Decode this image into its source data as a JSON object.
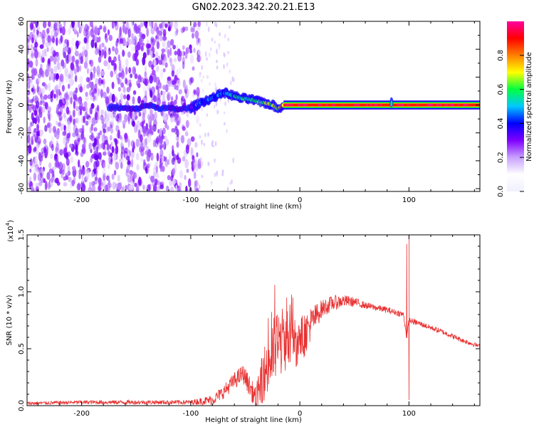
{
  "figure": {
    "title": "GN02.2023.342.20.21.E13"
  },
  "chart_data": [
    {
      "type": "heatmap",
      "xlabel": "Height of straight line (km)",
      "ylabel": "Frequency (Hz)",
      "xlim": [
        -250,
        165
      ],
      "ylim": [
        -62,
        60
      ],
      "xticks": [
        -200,
        -100,
        0,
        100
      ],
      "yticks": [
        60,
        40,
        20,
        0,
        -20,
        -40,
        -60
      ],
      "colorbar": {
        "label": "Normalized spectral amplitude",
        "range": [
          0,
          1
        ],
        "ticks": [
          "0.0",
          "0.2",
          "0.4",
          "0.6",
          "0.8"
        ],
        "colormap": [
          "#f0f0ff",
          "#ffffff",
          "#c8a0ff",
          "#8000ff",
          "#0000ff",
          "#00c8ff",
          "#00ff40",
          "#ffff00",
          "#ff8000",
          "#ff0000",
          "#ff00a0"
        ]
      },
      "features": {
        "noise_region_x": [
          -250,
          -92
        ],
        "sparse_region_x": [
          -92,
          -60
        ],
        "signal_track": [
          {
            "x": -170,
            "f": -2,
            "amp": 0.2
          },
          {
            "x": -150,
            "f": -3,
            "amp": 0.25
          },
          {
            "x": -140,
            "f": 0,
            "amp": 0.3
          },
          {
            "x": -130,
            "f": -2,
            "amp": 0.2
          },
          {
            "x": -110,
            "f": -3,
            "amp": 0.2
          },
          {
            "x": -100,
            "f": -2,
            "amp": 0.3
          },
          {
            "x": -90,
            "f": 2,
            "amp": 0.4
          },
          {
            "x": -80,
            "f": 5,
            "amp": 0.45
          },
          {
            "x": -70,
            "f": 9,
            "amp": 0.5
          },
          {
            "x": -62,
            "f": 7,
            "amp": 0.55
          },
          {
            "x": -55,
            "f": 5,
            "amp": 0.6
          },
          {
            "x": -45,
            "f": 4,
            "amp": 0.65
          },
          {
            "x": -35,
            "f": 2,
            "amp": 0.7
          },
          {
            "x": -25,
            "f": 0,
            "amp": 0.75
          },
          {
            "x": -20,
            "f": -3,
            "amp": 0.8
          },
          {
            "x": -15,
            "f": 0,
            "amp": 0.9
          },
          {
            "x": 0,
            "f": 0,
            "amp": 0.95
          },
          {
            "x": 50,
            "f": 0,
            "amp": 0.95
          },
          {
            "x": 85,
            "f": 0,
            "amp": 0.95
          },
          {
            "x": 165,
            "f": 0,
            "amp": 0.95
          }
        ],
        "spike_x": 84
      }
    },
    {
      "type": "line",
      "xlabel": "Height of straight line (km)",
      "ylabel": "SNR (10 * v/v)",
      "y_multiplier": "(x10",
      "y_multiplier_exp": "4",
      "y_multiplier_close": ")",
      "xlim": [
        -250,
        165
      ],
      "ylim": [
        0,
        1.5
      ],
      "xticks": [
        -200,
        -100,
        0,
        100
      ],
      "yticks": [
        "0.0",
        "0.5",
        "1.0",
        "1.5"
      ],
      "color": "#e83030",
      "envelope": [
        {
          "x": -250,
          "y": 0.02
        },
        {
          "x": -200,
          "y": 0.03
        },
        {
          "x": -150,
          "y": 0.03
        },
        {
          "x": -100,
          "y": 0.03
        },
        {
          "x": -80,
          "y": 0.05
        },
        {
          "x": -70,
          "y": 0.12
        },
        {
          "x": -60,
          "y": 0.22
        },
        {
          "x": -52,
          "y": 0.28
        },
        {
          "x": -45,
          "y": 0.15
        },
        {
          "x": -40,
          "y": 0.05
        },
        {
          "x": -35,
          "y": 0.22
        },
        {
          "x": -30,
          "y": 0.35
        },
        {
          "x": -25,
          "y": 0.45
        },
        {
          "x": -20,
          "y": 0.55
        },
        {
          "x": -10,
          "y": 0.6
        },
        {
          "x": 0,
          "y": 0.55
        },
        {
          "x": 10,
          "y": 0.72
        },
        {
          "x": 20,
          "y": 0.85
        },
        {
          "x": 30,
          "y": 0.9
        },
        {
          "x": 40,
          "y": 0.92
        },
        {
          "x": 50,
          "y": 0.91
        },
        {
          "x": 60,
          "y": 0.88
        },
        {
          "x": 80,
          "y": 0.84
        },
        {
          "x": 95,
          "y": 0.8
        },
        {
          "x": 98,
          "y": 0.6
        },
        {
          "x": 100,
          "y": 0.75
        },
        {
          "x": 110,
          "y": 0.72
        },
        {
          "x": 130,
          "y": 0.65
        },
        {
          "x": 150,
          "y": 0.57
        },
        {
          "x": 165,
          "y": 0.52
        }
      ],
      "noise_amplitude": [
        {
          "x": -250,
          "a": 0.015
        },
        {
          "x": -100,
          "a": 0.02
        },
        {
          "x": -70,
          "a": 0.06
        },
        {
          "x": -40,
          "a": 0.1
        },
        {
          "x": -30,
          "a": 0.3
        },
        {
          "x": -20,
          "a": 0.32
        },
        {
          "x": 0,
          "a": 0.22
        },
        {
          "x": 20,
          "a": 0.08
        },
        {
          "x": 60,
          "a": 0.03
        },
        {
          "x": 165,
          "a": 0.02
        }
      ],
      "spikes": [
        {
          "x": -23,
          "y": 1.06
        },
        {
          "x": -12,
          "y": 0.95
        },
        {
          "x": 98,
          "y": 1.42
        },
        {
          "x": 100,
          "y": 1.5
        },
        {
          "x": 100,
          "y": 0.05
        }
      ]
    }
  ]
}
